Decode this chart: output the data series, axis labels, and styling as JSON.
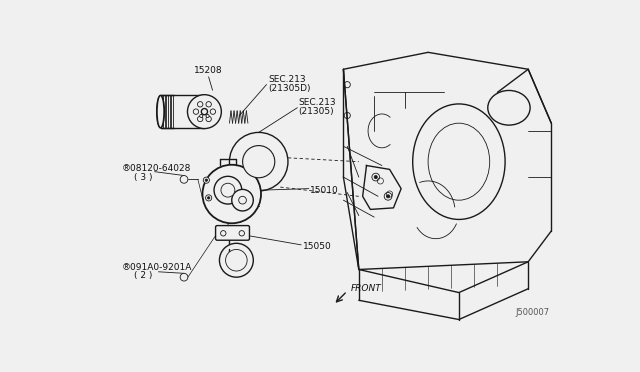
{
  "bg_color": "#f0f0f0",
  "line_color": "#1a1a1a",
  "label_color": "#111111",
  "diagram_id": "J500007",
  "lw_main": 1.0,
  "lw_thin": 0.6,
  "fs_label": 6.5,
  "parts": {
    "filter_label": "15208",
    "sec213d_line1": "SEC.213",
    "sec213d_line2": "(21305D)",
    "sec213_line1": "SEC.213",
    "sec213_line2": "(21305)",
    "bolt1_line1": "®08120-64028",
    "bolt1_line2": "( 3 )",
    "pump_label": "15010",
    "strainer_label": "15050",
    "bolt2_line1": "®091A0-9201A",
    "bolt2_line2": "( 2 )",
    "front_label": "FRONT"
  }
}
